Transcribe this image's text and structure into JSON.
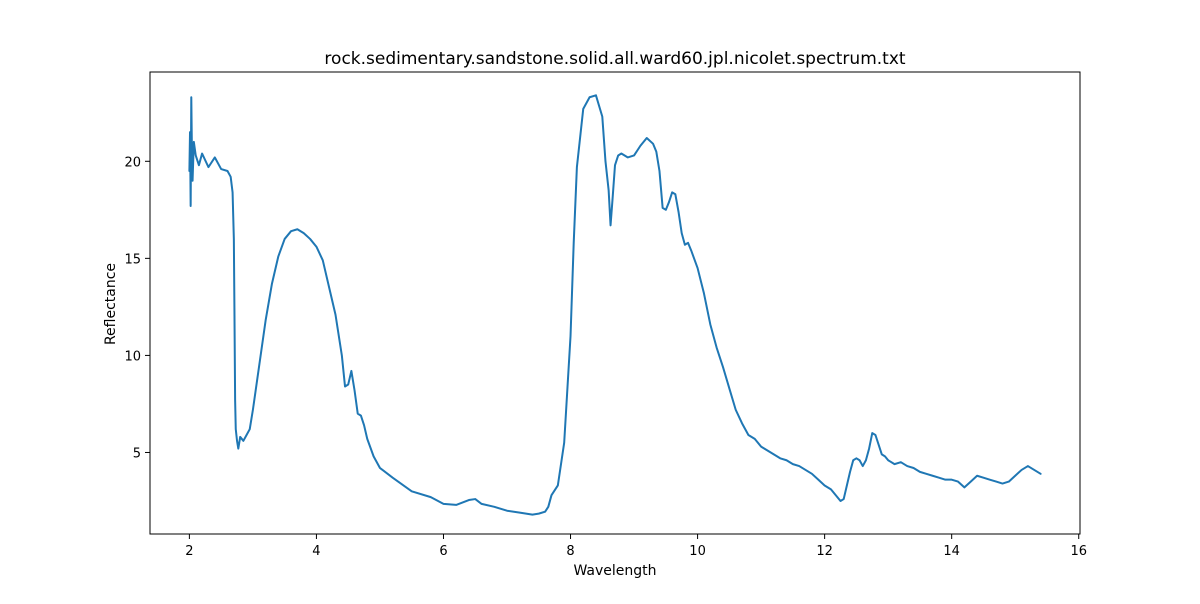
{
  "chart_data": {
    "type": "line",
    "title": "rock.sedimentary.sandstone.solid.all.ward60.jpl.nicolet.spectrum.txt",
    "xlabel": "Wavelength",
    "ylabel": "Reflectance",
    "xlim": [
      1.38,
      16.02
    ],
    "ylim": [
      0.8,
      24.6
    ],
    "x_ticks": [
      2,
      4,
      6,
      8,
      10,
      12,
      14,
      16
    ],
    "y_ticks": [
      5,
      10,
      15,
      20
    ],
    "grid": false,
    "line_color": "#1f77b4",
    "series": [
      {
        "x": [
          2.0,
          2.01,
          2.02,
          2.03,
          2.04,
          2.05,
          2.07,
          2.1,
          2.15,
          2.2,
          2.3,
          2.4,
          2.5,
          2.6,
          2.65,
          2.68,
          2.7,
          2.71,
          2.72,
          2.73,
          2.75,
          2.77,
          2.8,
          2.85,
          2.9,
          2.95,
          3.0,
          3.1,
          3.2,
          3.3,
          3.4,
          3.5,
          3.6,
          3.7,
          3.8,
          3.9,
          4.0,
          4.1,
          4.2,
          4.3,
          4.4,
          4.45,
          4.5,
          4.55,
          4.6,
          4.65,
          4.7,
          4.75,
          4.8,
          4.9,
          5.0,
          5.2,
          5.5,
          5.8,
          6.0,
          6.2,
          6.4,
          6.5,
          6.6,
          6.8,
          7.0,
          7.2,
          7.4,
          7.5,
          7.6,
          7.65,
          7.7,
          7.8,
          7.9,
          8.0,
          8.05,
          8.1,
          8.2,
          8.3,
          8.4,
          8.5,
          8.55,
          8.6,
          8.63,
          8.66,
          8.7,
          8.75,
          8.8,
          8.9,
          9.0,
          9.1,
          9.2,
          9.3,
          9.35,
          9.4,
          9.45,
          9.5,
          9.55,
          9.6,
          9.65,
          9.7,
          9.75,
          9.8,
          9.85,
          9.9,
          10.0,
          10.1,
          10.2,
          10.3,
          10.4,
          10.5,
          10.6,
          10.7,
          10.8,
          10.9,
          11.0,
          11.1,
          11.2,
          11.3,
          11.4,
          11.5,
          11.6,
          11.7,
          11.8,
          11.9,
          12.0,
          12.1,
          12.2,
          12.25,
          12.3,
          12.35,
          12.4,
          12.45,
          12.5,
          12.55,
          12.6,
          12.65,
          12.7,
          12.75,
          12.8,
          12.85,
          12.9,
          12.95,
          13.0,
          13.1,
          13.2,
          13.3,
          13.4,
          13.5,
          13.6,
          13.7,
          13.8,
          13.9,
          14.0,
          14.1,
          14.2,
          14.3,
          14.4,
          14.5,
          14.6,
          14.7,
          14.8,
          14.9,
          15.0,
          15.1,
          15.2,
          15.3,
          15.4
        ],
        "y": [
          19.5,
          21.5,
          17.7,
          23.3,
          20.5,
          19.0,
          21.0,
          20.3,
          19.8,
          20.4,
          19.7,
          20.2,
          19.6,
          19.5,
          19.2,
          18.4,
          16.0,
          12.0,
          7.7,
          6.2,
          5.6,
          5.2,
          5.8,
          5.6,
          5.9,
          6.2,
          7.2,
          9.5,
          11.8,
          13.7,
          15.1,
          16.0,
          16.4,
          16.5,
          16.3,
          16.0,
          15.6,
          14.9,
          13.5,
          12.1,
          10.0,
          8.4,
          8.5,
          9.2,
          8.2,
          7.0,
          6.9,
          6.4,
          5.7,
          4.8,
          4.2,
          3.7,
          3.0,
          2.7,
          2.35,
          2.3,
          2.55,
          2.6,
          2.35,
          2.2,
          2.0,
          1.9,
          1.8,
          1.85,
          1.95,
          2.2,
          2.8,
          3.3,
          5.5,
          11.0,
          15.8,
          19.7,
          22.7,
          23.3,
          23.4,
          22.3,
          20.0,
          18.5,
          16.7,
          18.0,
          19.8,
          20.3,
          20.4,
          20.2,
          20.3,
          20.8,
          21.2,
          20.9,
          20.5,
          19.5,
          17.6,
          17.5,
          17.9,
          18.4,
          18.3,
          17.4,
          16.3,
          15.7,
          15.8,
          15.4,
          14.5,
          13.2,
          11.6,
          10.4,
          9.4,
          8.3,
          7.2,
          6.5,
          5.9,
          5.7,
          5.3,
          5.1,
          4.9,
          4.7,
          4.6,
          4.4,
          4.3,
          4.1,
          3.9,
          3.6,
          3.3,
          3.1,
          2.7,
          2.5,
          2.6,
          3.3,
          4.0,
          4.6,
          4.7,
          4.6,
          4.3,
          4.6,
          5.2,
          6.0,
          5.9,
          5.4,
          4.9,
          4.8,
          4.6,
          4.4,
          4.5,
          4.3,
          4.2,
          4.0,
          3.9,
          3.8,
          3.7,
          3.6,
          3.6,
          3.5,
          3.2,
          3.5,
          3.8,
          3.7,
          3.6,
          3.5,
          3.4,
          3.5,
          3.8,
          4.1,
          4.3,
          4.1,
          3.9
        ]
      }
    ]
  }
}
